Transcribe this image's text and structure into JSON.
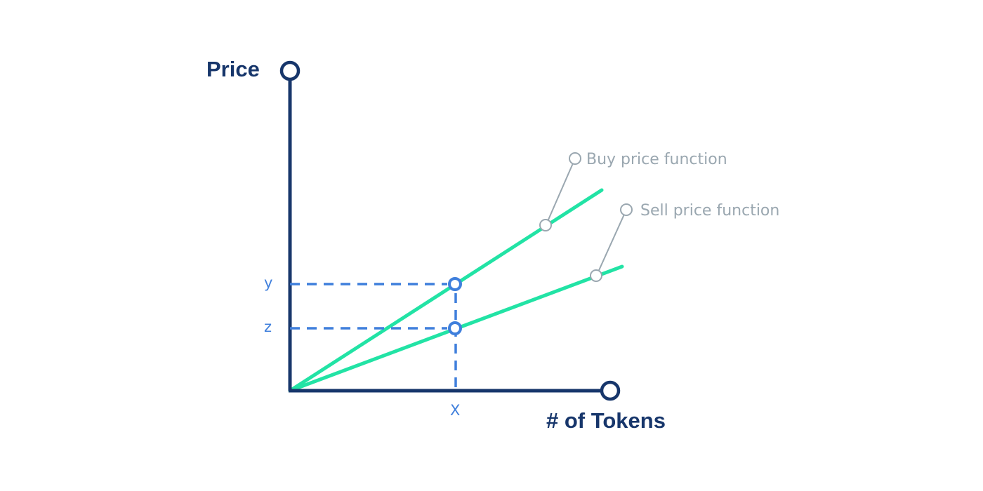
{
  "colors": {
    "axis": "#17366b",
    "line": "#22e3a5",
    "guide": "#3f7fdc",
    "callout": "#9aa7b0",
    "background": "#ffffff"
  },
  "axes": {
    "y_label": "Price",
    "x_label": "# of Tokens"
  },
  "markers": {
    "x": "X",
    "y": "y",
    "z": "z"
  },
  "callouts": {
    "buy": "Buy price function",
    "sell": "Sell price function"
  },
  "icons": {
    "axis_end": "open-circle",
    "point": "open-circle"
  }
}
